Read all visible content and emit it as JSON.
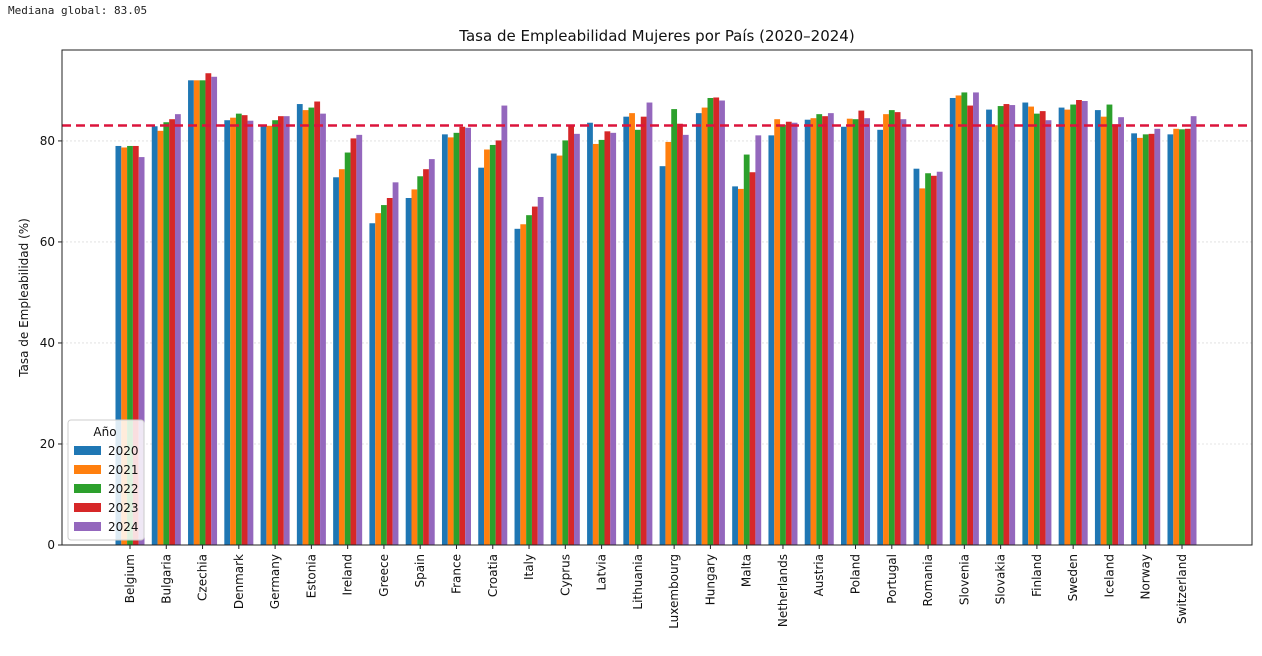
{
  "annotation": {
    "median_label": "Mediana global: 83.05"
  },
  "chart_data": {
    "type": "bar",
    "title": "Tasa de Empleabilidad Mujeres por País (2020–2024)",
    "xlabel": "",
    "ylabel": "Tasa de Empleabilidad (%)",
    "ylim": [
      0,
      98
    ],
    "yticks": [
      0,
      20,
      40,
      60,
      80
    ],
    "grid": "horizontal",
    "median_line": 83.05,
    "median_color": "#dc143c",
    "legend": {
      "title": "Año",
      "placement": "lower-left"
    },
    "categories": [
      "Belgium",
      "Bulgaria",
      "Czechia",
      "Denmark",
      "Germany",
      "Estonia",
      "Ireland",
      "Greece",
      "Spain",
      "France",
      "Croatia",
      "Italy",
      "Cyprus",
      "Latvia",
      "Lithuania",
      "Luxembourg",
      "Hungary",
      "Malta",
      "Netherlands",
      "Austria",
      "Poland",
      "Portugal",
      "Romania",
      "Slovenia",
      "Slovakia",
      "Finland",
      "Sweden",
      "Iceland",
      "Norway",
      "Switzerland"
    ],
    "series": [
      {
        "name": "2020",
        "color": "#1f77b4",
        "values": [
          79.0,
          82.9,
          92.0,
          84.1,
          83.2,
          87.3,
          72.8,
          63.7,
          68.7,
          81.3,
          74.7,
          62.6,
          77.5,
          83.6,
          84.8,
          75.0,
          85.5,
          71.0,
          81.1,
          84.2,
          82.8,
          82.2,
          74.5,
          88.5,
          86.2,
          87.6,
          86.6,
          86.1,
          81.5,
          81.3
        ]
      },
      {
        "name": "2021",
        "color": "#ff7f0e",
        "values": [
          78.7,
          82.0,
          92.0,
          84.6,
          83.0,
          86.1,
          74.4,
          65.7,
          70.4,
          80.7,
          78.3,
          63.5,
          77.1,
          79.4,
          85.5,
          79.8,
          86.6,
          70.5,
          84.3,
          84.5,
          84.4,
          85.3,
          70.6,
          89.0,
          83.1,
          86.8,
          86.2,
          84.8,
          80.6,
          82.4
        ]
      },
      {
        "name": "2022",
        "color": "#2ca02c",
        "values": [
          79.0,
          83.7,
          92.0,
          85.4,
          84.1,
          86.6,
          77.7,
          67.3,
          73.0,
          81.6,
          79.2,
          65.3,
          80.1,
          80.2,
          82.2,
          86.3,
          88.5,
          77.3,
          83.2,
          85.3,
          84.3,
          86.1,
          73.6,
          89.6,
          86.9,
          85.4,
          87.2,
          87.2,
          81.3,
          82.3
        ]
      },
      {
        "name": "2023",
        "color": "#d62728",
        "values": [
          79.0,
          84.3,
          93.4,
          85.1,
          84.9,
          87.8,
          80.5,
          68.7,
          74.4,
          82.8,
          80.1,
          67.0,
          83.0,
          81.9,
          84.8,
          83.4,
          88.6,
          73.8,
          83.8,
          84.9,
          86.0,
          85.7,
          73.1,
          87.0,
          87.3,
          85.9,
          88.1,
          83.3,
          81.4,
          82.4
        ]
      },
      {
        "name": "2024",
        "color": "#9467bd",
        "values": [
          76.8,
          85.3,
          92.7,
          84.0,
          84.9,
          85.4,
          81.2,
          71.8,
          76.4,
          82.6,
          87.0,
          68.9,
          81.4,
          81.6,
          87.6,
          81.2,
          88.0,
          81.1,
          83.6,
          85.5,
          84.5,
          84.3,
          73.9,
          89.6,
          87.1,
          84.1,
          87.9,
          84.7,
          82.4,
          84.9
        ]
      }
    ]
  }
}
